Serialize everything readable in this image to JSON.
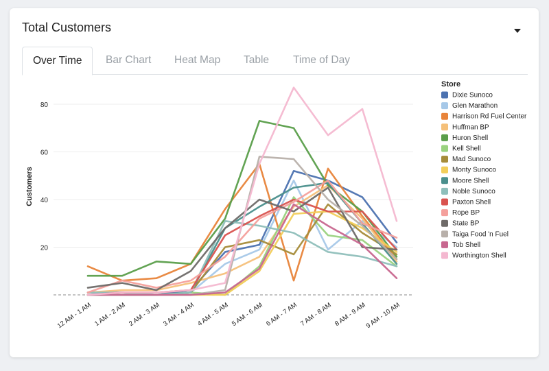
{
  "card": {
    "title": "Total Customers"
  },
  "tabs": [
    {
      "label": "Over Time"
    },
    {
      "label": "Bar Chart"
    },
    {
      "label": "Heat Map"
    },
    {
      "label": "Table"
    },
    {
      "label": "Time of Day"
    }
  ],
  "chart_data": {
    "type": "line",
    "ylabel": "Customers",
    "ylim": [
      0,
      90
    ],
    "yticks": [
      20,
      40,
      60,
      80
    ],
    "legend_title": "Store",
    "legend_position": "right",
    "categories": [
      "12 AM - 1 AM",
      "1 AM - 2 AM",
      "2 AM - 3 AM",
      "3 AM - 4 AM",
      "4 AM - 5 AM",
      "5 AM - 6 AM",
      "6 AM - 7 AM",
      "7 AM - 8 AM",
      "8 AM - 9 AM",
      "9 AM - 10 AM"
    ],
    "series": [
      {
        "name": "Dixie Sunoco",
        "color": "#4c72b0",
        "values": [
          1,
          1,
          0,
          2,
          18,
          21,
          52,
          48,
          41,
          22
        ]
      },
      {
        "name": "Glen Marathon",
        "color": "#a6c8e8",
        "values": [
          0,
          1,
          0,
          1,
          13,
          19,
          48,
          19,
          31,
          20
        ]
      },
      {
        "name": "Harrison Rd Fuel Center",
        "color": "#e8843a",
        "values": [
          12,
          6,
          7,
          13,
          36,
          55,
          6,
          53,
          33,
          15
        ]
      },
      {
        "name": "Huffman BP",
        "color": "#f5c07a",
        "values": [
          1,
          2,
          2,
          5,
          9,
          16,
          37,
          46,
          32,
          14
        ]
      },
      {
        "name": "Huron Shell",
        "color": "#5a9e4a",
        "values": [
          8,
          8,
          14,
          13,
          32,
          73,
          70,
          46,
          35,
          16
        ]
      },
      {
        "name": "Kell Shell",
        "color": "#9ad27f",
        "values": [
          0,
          0,
          0,
          1,
          0,
          12,
          41,
          25,
          23,
          12
        ]
      },
      {
        "name": "Mad Sunoco",
        "color": "#a68c3a",
        "values": [
          0,
          0,
          0,
          1,
          20,
          23,
          17,
          38,
          26,
          17
        ]
      },
      {
        "name": "Monty Sunoco",
        "color": "#f2ce5a",
        "values": [
          0,
          0,
          0,
          0,
          0,
          10,
          34,
          35,
          28,
          18
        ]
      },
      {
        "name": "Moore Shell",
        "color": "#4a8f8c",
        "values": [
          0,
          0,
          0,
          1,
          28,
          37,
          45,
          47,
          30,
          13
        ]
      },
      {
        "name": "Noble Sunoco",
        "color": "#8fbfbb",
        "values": [
          1,
          1,
          0,
          1,
          31,
          29,
          26,
          18,
          16,
          12
        ]
      },
      {
        "name": "Paxton Shell",
        "color": "#d9534f",
        "values": [
          0,
          1,
          1,
          2,
          25,
          33,
          40,
          35,
          35,
          19
        ]
      },
      {
        "name": "Rope BP",
        "color": "#f4a09c",
        "values": [
          1,
          6,
          3,
          6,
          16,
          32,
          39,
          48,
          30,
          24
        ]
      },
      {
        "name": "State BP",
        "color": "#6e6a68",
        "values": [
          3,
          5,
          2,
          10,
          28,
          40,
          35,
          45,
          20,
          19
        ]
      },
      {
        "name": "Taiga Food 'n Fuel",
        "color": "#b8b0aa",
        "values": [
          0,
          0,
          0,
          0,
          2,
          58,
          57,
          40,
          29,
          15
        ]
      },
      {
        "name": "Tob Shell",
        "color": "#c8678f",
        "values": [
          0,
          0,
          0,
          0,
          1,
          11,
          38,
          29,
          21,
          7
        ]
      },
      {
        "name": "Worthington Shell",
        "color": "#f4b8d0",
        "values": [
          0,
          1,
          1,
          2,
          5,
          55,
          87,
          67,
          78,
          31
        ]
      }
    ]
  }
}
